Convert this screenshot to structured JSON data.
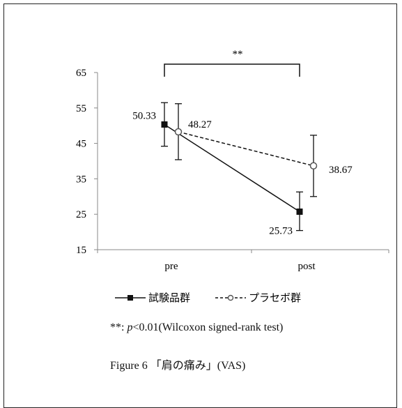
{
  "chart_data": {
    "type": "line",
    "categories": [
      "pre",
      "post"
    ],
    "ylim": [
      15,
      65
    ],
    "yticks": [
      15,
      25,
      35,
      45,
      55,
      65
    ],
    "title": "",
    "xlabel": "",
    "ylabel": "",
    "series": [
      {
        "name": "試験品群",
        "values": [
          50.33,
          25.73
        ],
        "error_upper": [
          56.5,
          31.3
        ],
        "error_lower": [
          44.2,
          20.4
        ],
        "data_labels": [
          "50.33",
          "25.73"
        ],
        "line_style": "solid",
        "marker": "filled-square",
        "color": "#111111"
      },
      {
        "name": "プラセボ群",
        "values": [
          48.27,
          38.67
        ],
        "error_upper": [
          56.2,
          47.3
        ],
        "error_lower": [
          40.4,
          30.0
        ],
        "data_labels": [
          "48.27",
          "38.67"
        ],
        "line_style": "dashed",
        "marker": "open-circle",
        "color": "#111111"
      }
    ],
    "annotation": "**",
    "legend_position": "bottom-left"
  },
  "footnote": {
    "prefix": "**: ",
    "p": "p",
    "rest": "<0.01(Wilcoxon signed-rank test)"
  },
  "caption": "Figure 6 「肩の痛み」(VAS)"
}
